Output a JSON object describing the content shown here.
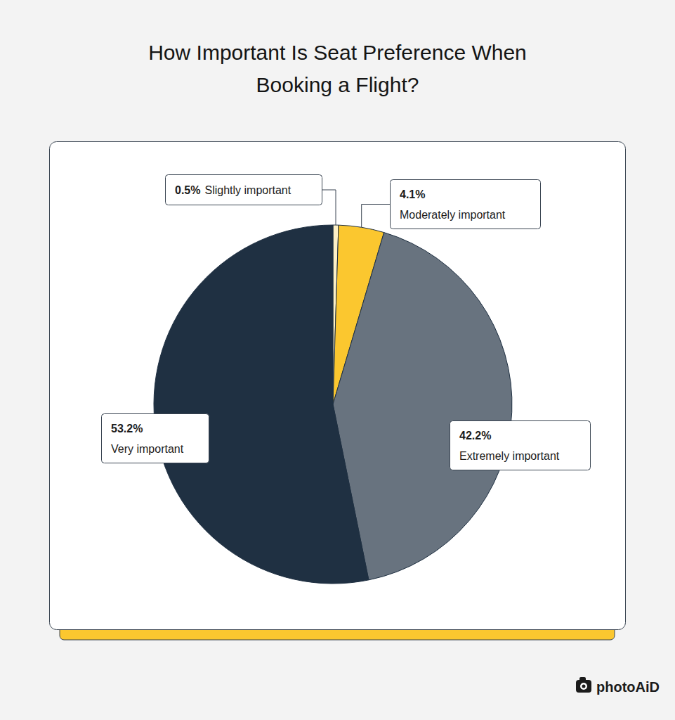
{
  "chart_data": {
    "type": "pie",
    "title": "How Important Is Seat Preference When Booking a Flight?",
    "categories": [
      "Slightly important",
      "Moderately important",
      "Extremely important",
      "Very important"
    ],
    "values": [
      0.5,
      4.1,
      42.2,
      53.2
    ],
    "value_labels": [
      "0.5%",
      "4.1%",
      "42.2%",
      "53.2%"
    ],
    "colors": [
      "#fdf0c6",
      "#fbc72f",
      "#68737f",
      "#1f3042"
    ],
    "data_labels": true
  },
  "brand": "photoAiD"
}
